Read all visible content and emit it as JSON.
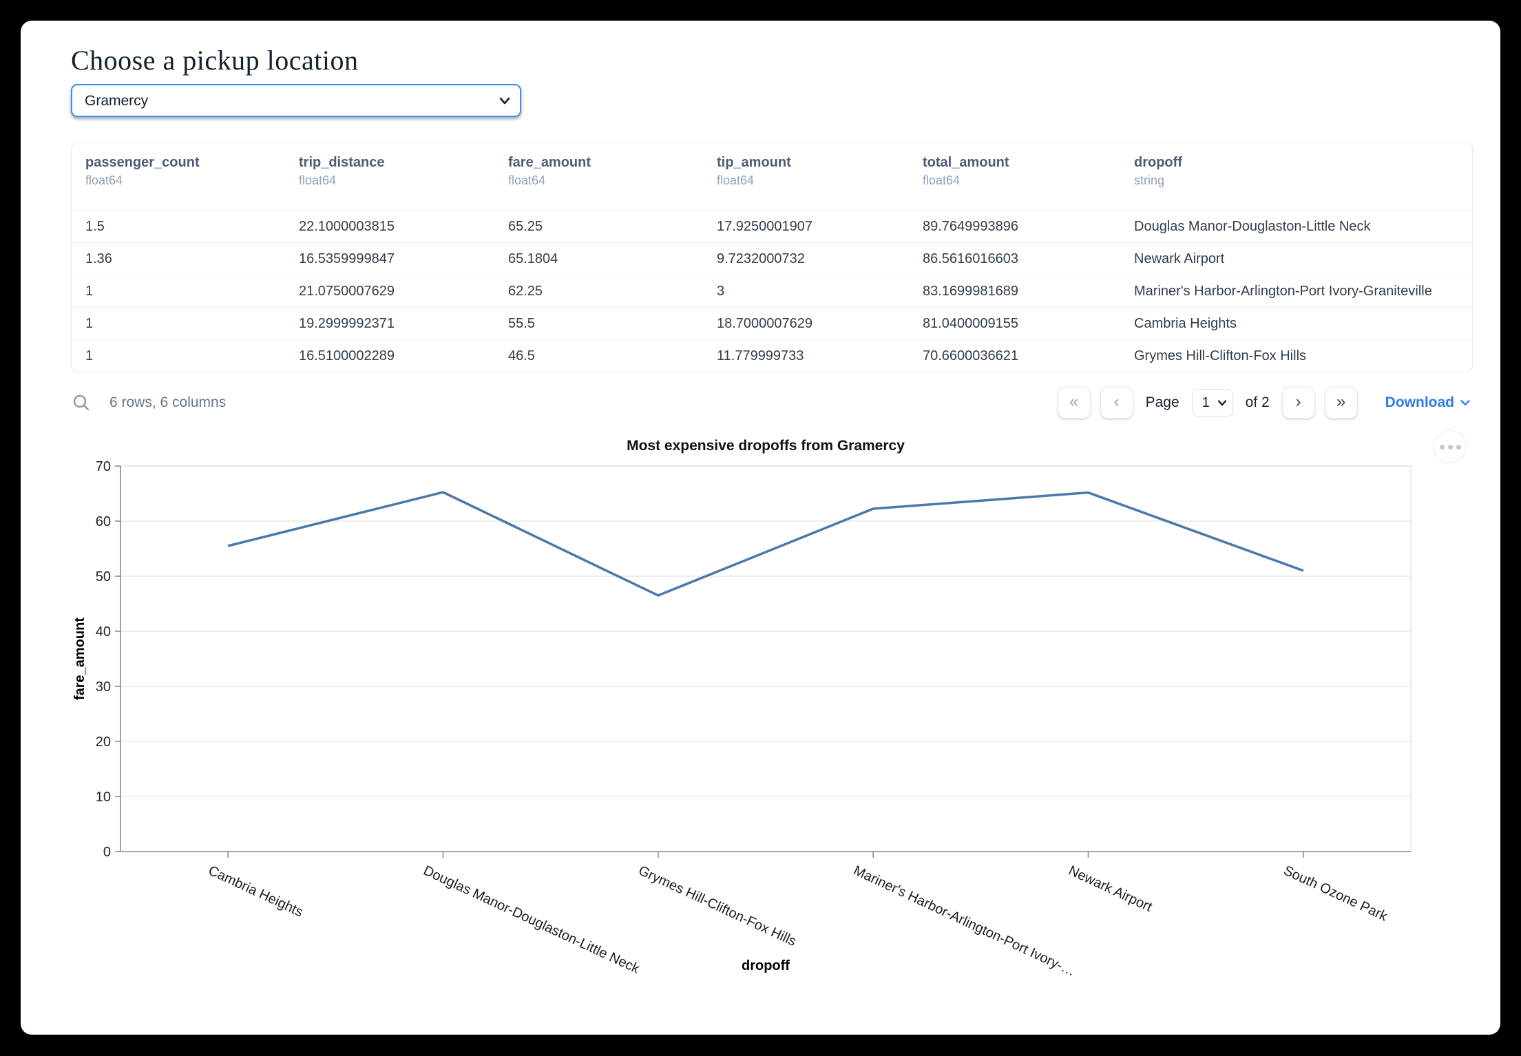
{
  "page": {
    "title": "Choose a pickup location"
  },
  "picker": {
    "value": "Gramercy"
  },
  "table": {
    "columns": [
      {
        "name": "passenger_count",
        "type": "float64"
      },
      {
        "name": "trip_distance",
        "type": "float64"
      },
      {
        "name": "fare_amount",
        "type": "float64"
      },
      {
        "name": "tip_amount",
        "type": "float64"
      },
      {
        "name": "total_amount",
        "type": "float64"
      },
      {
        "name": "dropoff",
        "type": "string"
      }
    ],
    "rows": [
      [
        "1.5",
        "22.1000003815",
        "65.25",
        "17.9250001907",
        "89.7649993896",
        "Douglas Manor-Douglaston-Little Neck"
      ],
      [
        "1.36",
        "16.5359999847",
        "65.1804",
        "9.7232000732",
        "86.5616016603",
        "Newark Airport"
      ],
      [
        "1",
        "21.0750007629",
        "62.25",
        "3",
        "83.1699981689",
        "Mariner's Harbor-Arlington-Port Ivory-Graniteville"
      ],
      [
        "1",
        "19.2999992371",
        "55.5",
        "18.7000007629",
        "81.0400009155",
        "Cambria Heights"
      ],
      [
        "1",
        "16.5100002289",
        "46.5",
        "11.779999733",
        "70.6600036621",
        "Grymes Hill-Clifton-Fox Hills"
      ]
    ],
    "footer": {
      "summary": "6 rows, 6 columns",
      "page_label": "Page",
      "page_value": "1",
      "of_label": "of 2",
      "download_label": "Download"
    },
    "pager_icons": {
      "first": "«",
      "prev": "‹",
      "next": "›",
      "last": "»"
    }
  },
  "chart_data": {
    "type": "line",
    "title": "Most expensive dropoffs from Gramercy",
    "xlabel": "dropoff",
    "ylabel": "fare_amount",
    "categories": [
      "Cambria Heights",
      "Douglas Manor-Douglaston-Little Neck",
      "Grymes Hill-Clifton-Fox Hills",
      "Mariner's Harbor-Arlington-Port Ivory-Graniteville",
      "Newark Airport",
      "South Ozone Park"
    ],
    "tick_labels": [
      "Cambria Heights",
      "Douglas Manor-Douglaston-Little Neck",
      "Grymes Hill-Clifton-Fox Hills",
      "Mariner's Harbor-Arlington-Port Ivory-…",
      "Newark Airport",
      "South Ozone Park"
    ],
    "values": [
      55.5,
      65.25,
      46.5,
      62.25,
      65.1804,
      51
    ],
    "ylim": [
      0,
      70
    ],
    "yticks": [
      0,
      10,
      20,
      30,
      40,
      50,
      60,
      70
    ],
    "line_color": "#4c78a8",
    "grid": true,
    "legend": "none"
  },
  "colors": {
    "accent": "#2b7de9",
    "select_focus": "#3d8df5",
    "line": "#4c78a8"
  }
}
